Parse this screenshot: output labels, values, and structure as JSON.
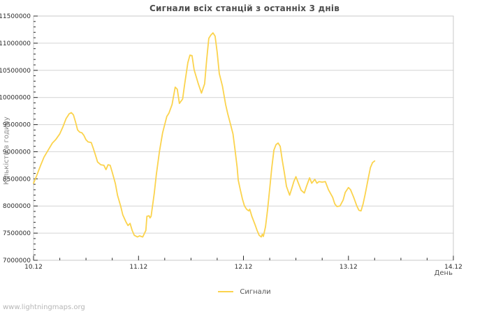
{
  "title": "Сигнали всіх станцій з останніх 3 днів",
  "watermark": "www.lightningmaps.org",
  "legend": {
    "label": "Сигнали"
  },
  "colors": {
    "line": "#FBD34D",
    "frame": "#c8c8c8",
    "grid": "#d4d4d4",
    "tick": "#2b2b2b",
    "tick_text": "#2b2b2b",
    "title_text": "#4d4d4d",
    "axis_label_text": "#555555",
    "muted_text": "#8a8a8a",
    "watermark_text": "#b6b6b6",
    "background": "#ffffff"
  },
  "chart_data": {
    "type": "line",
    "title": "Сигнали всіх станцій з останніх 3 днів",
    "xlabel": "День",
    "ylabel": "Кількість в годину",
    "grid": "horizontal-only",
    "legend_position": "bottom-center",
    "ylim": [
      7000000,
      11500000
    ],
    "y_ticks": [
      7000000,
      7500000,
      8000000,
      8500000,
      9000000,
      9500000,
      10000000,
      10500000,
      11000000,
      11500000
    ],
    "y_minor_step": 100000,
    "xlim_days": [
      0,
      4
    ],
    "x_tick_labels": [
      "10.12",
      "11.12",
      "12.12",
      "13.12",
      "14.12"
    ],
    "x_tick_positions_days": [
      0,
      1,
      2,
      3,
      4
    ],
    "x_minor_step_days": 0.25,
    "series": [
      {
        "name": "Сигнали",
        "color": "#FBD34D",
        "points_day_value": [
          [
            0.0,
            8420000
          ],
          [
            0.03,
            8560000
          ],
          [
            0.07,
            8760000
          ],
          [
            0.1,
            8900000
          ],
          [
            0.14,
            9030000
          ],
          [
            0.18,
            9160000
          ],
          [
            0.21,
            9220000
          ],
          [
            0.25,
            9330000
          ],
          [
            0.28,
            9460000
          ],
          [
            0.31,
            9610000
          ],
          [
            0.34,
            9700000
          ],
          [
            0.36,
            9720000
          ],
          [
            0.38,
            9680000
          ],
          [
            0.4,
            9550000
          ],
          [
            0.42,
            9400000
          ],
          [
            0.44,
            9360000
          ],
          [
            0.46,
            9350000
          ],
          [
            0.48,
            9300000
          ],
          [
            0.5,
            9220000
          ],
          [
            0.52,
            9180000
          ],
          [
            0.55,
            9170000
          ],
          [
            0.57,
            9060000
          ],
          [
            0.59,
            8940000
          ],
          [
            0.61,
            8810000
          ],
          [
            0.64,
            8760000
          ],
          [
            0.67,
            8750000
          ],
          [
            0.69,
            8670000
          ],
          [
            0.71,
            8760000
          ],
          [
            0.73,
            8750000
          ],
          [
            0.75,
            8620000
          ],
          [
            0.78,
            8410000
          ],
          [
            0.8,
            8200000
          ],
          [
            0.83,
            8000000
          ],
          [
            0.85,
            7840000
          ],
          [
            0.88,
            7710000
          ],
          [
            0.9,
            7640000
          ],
          [
            0.92,
            7680000
          ],
          [
            0.94,
            7550000
          ],
          [
            0.96,
            7460000
          ],
          [
            0.99,
            7430000
          ],
          [
            1.01,
            7450000
          ],
          [
            1.04,
            7430000
          ],
          [
            1.07,
            7550000
          ],
          [
            1.08,
            7810000
          ],
          [
            1.1,
            7820000
          ],
          [
            1.11,
            7780000
          ],
          [
            1.12,
            7810000
          ],
          [
            1.15,
            8230000
          ],
          [
            1.17,
            8580000
          ],
          [
            1.2,
            9010000
          ],
          [
            1.23,
            9350000
          ],
          [
            1.27,
            9650000
          ],
          [
            1.29,
            9710000
          ],
          [
            1.32,
            9870000
          ],
          [
            1.35,
            10190000
          ],
          [
            1.37,
            10150000
          ],
          [
            1.39,
            9890000
          ],
          [
            1.42,
            9970000
          ],
          [
            1.44,
            10250000
          ],
          [
            1.47,
            10640000
          ],
          [
            1.49,
            10780000
          ],
          [
            1.51,
            10770000
          ],
          [
            1.53,
            10510000
          ],
          [
            1.57,
            10250000
          ],
          [
            1.6,
            10080000
          ],
          [
            1.63,
            10250000
          ],
          [
            1.65,
            10700000
          ],
          [
            1.67,
            11090000
          ],
          [
            1.69,
            11150000
          ],
          [
            1.71,
            11190000
          ],
          [
            1.73,
            11130000
          ],
          [
            1.75,
            10830000
          ],
          [
            1.77,
            10440000
          ],
          [
            1.8,
            10210000
          ],
          [
            1.83,
            9870000
          ],
          [
            1.85,
            9700000
          ],
          [
            1.88,
            9480000
          ],
          [
            1.9,
            9330000
          ],
          [
            1.92,
            9030000
          ],
          [
            1.94,
            8710000
          ],
          [
            1.95,
            8480000
          ],
          [
            1.97,
            8300000
          ],
          [
            1.99,
            8130000
          ],
          [
            2.01,
            8000000
          ],
          [
            2.03,
            7940000
          ],
          [
            2.05,
            7910000
          ],
          [
            2.06,
            7940000
          ],
          [
            2.08,
            7810000
          ],
          [
            2.11,
            7660000
          ],
          [
            2.13,
            7550000
          ],
          [
            2.15,
            7460000
          ],
          [
            2.17,
            7430000
          ],
          [
            2.18,
            7480000
          ],
          [
            2.19,
            7440000
          ],
          [
            2.21,
            7620000
          ],
          [
            2.23,
            7940000
          ],
          [
            2.25,
            8320000
          ],
          [
            2.27,
            8710000
          ],
          [
            2.29,
            9030000
          ],
          [
            2.31,
            9130000
          ],
          [
            2.33,
            9160000
          ],
          [
            2.35,
            9100000
          ],
          [
            2.37,
            8840000
          ],
          [
            2.39,
            8610000
          ],
          [
            2.41,
            8360000
          ],
          [
            2.44,
            8200000
          ],
          [
            2.46,
            8320000
          ],
          [
            2.48,
            8450000
          ],
          [
            2.5,
            8540000
          ],
          [
            2.53,
            8390000
          ],
          [
            2.55,
            8290000
          ],
          [
            2.58,
            8240000
          ],
          [
            2.6,
            8360000
          ],
          [
            2.63,
            8520000
          ],
          [
            2.65,
            8420000
          ],
          [
            2.68,
            8490000
          ],
          [
            2.7,
            8420000
          ],
          [
            2.72,
            8450000
          ],
          [
            2.75,
            8440000
          ],
          [
            2.78,
            8450000
          ],
          [
            2.81,
            8300000
          ],
          [
            2.85,
            8160000
          ],
          [
            2.87,
            8040000
          ],
          [
            2.89,
            7990000
          ],
          [
            2.92,
            8000000
          ],
          [
            2.95,
            8110000
          ],
          [
            2.97,
            8250000
          ],
          [
            3.0,
            8340000
          ],
          [
            3.02,
            8300000
          ],
          [
            3.05,
            8160000
          ],
          [
            3.08,
            8000000
          ],
          [
            3.1,
            7920000
          ],
          [
            3.12,
            7910000
          ],
          [
            3.14,
            8040000
          ],
          [
            3.16,
            8220000
          ],
          [
            3.19,
            8520000
          ],
          [
            3.21,
            8710000
          ],
          [
            3.23,
            8800000
          ],
          [
            3.25,
            8830000
          ]
        ]
      }
    ]
  }
}
